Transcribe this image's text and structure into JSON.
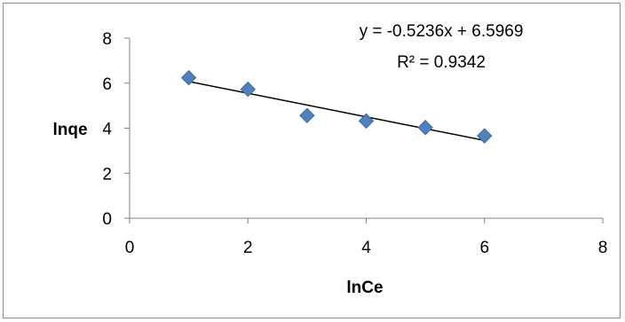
{
  "chart_data": {
    "type": "scatter",
    "xlabel": "lnCe",
    "ylabel": "lnqe",
    "xlim": [
      0,
      8
    ],
    "ylim": [
      0,
      8
    ],
    "xticks": [
      0,
      2,
      4,
      6,
      8
    ],
    "yticks": [
      0,
      2,
      4,
      6,
      8
    ],
    "grid": false,
    "legend": "none",
    "series": [
      {
        "marker": "diamond",
        "color": "#4f81bd",
        "points": [
          {
            "x": 1,
            "y": 6.24
          },
          {
            "x": 2,
            "y": 5.73
          },
          {
            "x": 3,
            "y": 4.56
          },
          {
            "x": 4,
            "y": 4.32
          },
          {
            "x": 5,
            "y": 4.03
          },
          {
            "x": 6,
            "y": 3.66
          }
        ]
      }
    ],
    "trendline": {
      "slope": -0.5236,
      "intercept": 6.5969,
      "x_range": [
        1,
        6
      ],
      "color": "#000000"
    },
    "annotations": {
      "equation": "y = -0.5236x + 6.5969",
      "r_squared": "R² = 0.9342"
    }
  }
}
